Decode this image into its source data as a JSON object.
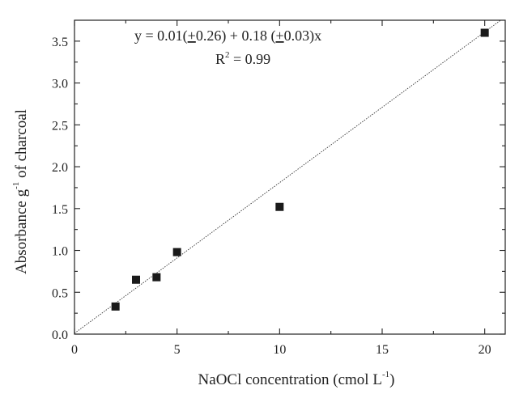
{
  "chart_data": {
    "type": "scatter",
    "series": [
      {
        "points": [
          {
            "x": 2,
            "y": 0.33
          },
          {
            "x": 3,
            "y": 0.65
          },
          {
            "x": 4,
            "y": 0.68
          },
          {
            "x": 5,
            "y": 0.98
          },
          {
            "x": 10,
            "y": 1.52
          },
          {
            "x": 20,
            "y": 3.6
          }
        ],
        "marker": "square",
        "color": "#1a1a1a"
      }
    ],
    "fit_line": {
      "intercept": 0.01,
      "slope": 0.18,
      "style": "dotted",
      "color": "#333333"
    },
    "xlabel": {
      "main": "NaOCl concentration (cmol L",
      "sup": "-1",
      "close": ")"
    },
    "ylabel": {
      "main": "Absorbance g",
      "sup": "-1",
      "rest": " of charcoal"
    },
    "xlim": [
      0,
      21
    ],
    "ylim": [
      0,
      3.75
    ],
    "xticks": [
      "0",
      "5",
      "10",
      "15",
      "20"
    ],
    "xtick_values": [
      0,
      5,
      10,
      15,
      20
    ],
    "yticks": [
      "0.0",
      "0.5",
      "1.0",
      "1.5",
      "2.0",
      "2.5",
      "3.0",
      "3.5"
    ],
    "ytick_values": [
      0,
      0.5,
      1.0,
      1.5,
      2.0,
      2.5,
      3.0,
      3.5
    ],
    "annotation": {
      "eq_prefix": "y = 0.01(",
      "pm1": "+",
      "eq_mid": "0.26) + 0.18 (",
      "pm2": "+",
      "eq_end": "0.03)x",
      "r2_label": "R",
      "r2_sup": "2",
      "r2_value": " = 0.99"
    },
    "grid": false,
    "legend": "none"
  }
}
